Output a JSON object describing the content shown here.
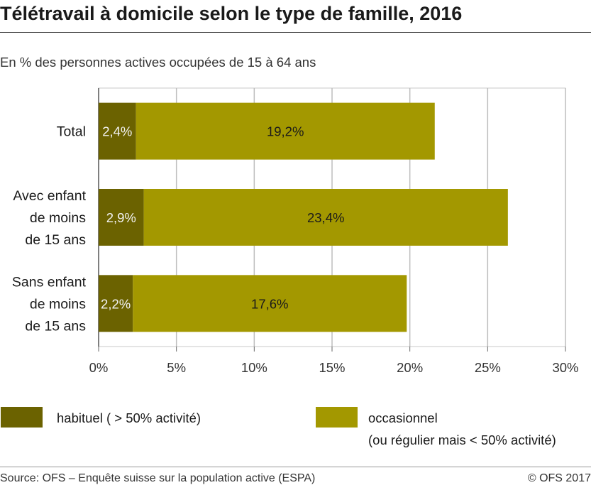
{
  "header": {
    "title": "Télétravail à domicile selon le type de famille, 2016",
    "subtitle": "En % des personnes actives occupées de 15 à 64 ans"
  },
  "chart_data": {
    "type": "bar",
    "orientation": "horizontal",
    "stacked": true,
    "categories": [
      [
        "Total"
      ],
      [
        "Avec enfant",
        "de moins",
        "de 15 ans"
      ],
      [
        "Sans enfant",
        "de moins",
        "de 15 ans"
      ]
    ],
    "series": [
      {
        "name": "habituel ( > 50% activité)",
        "values": [
          2.4,
          2.9,
          2.2
        ],
        "labels": [
          "2,4%",
          "2,9%",
          "2,2%"
        ],
        "color": "#6b6200"
      },
      {
        "name": "occasionnel",
        "name_line2": "(ou régulier mais < 50% activité)",
        "values": [
          19.2,
          23.4,
          17.6
        ],
        "labels": [
          "19,2%",
          "23,4%",
          "17,6%"
        ],
        "color": "#a39800"
      }
    ],
    "xlim": [
      0,
      30
    ],
    "xticks": [
      "0%",
      "5%",
      "10%",
      "15%",
      "20%",
      "25%",
      "30%"
    ],
    "grid": true
  },
  "footer": {
    "source": "Source: OFS – Enquête suisse sur la population active (ESPA)",
    "copyright": "© OFS 2017"
  }
}
